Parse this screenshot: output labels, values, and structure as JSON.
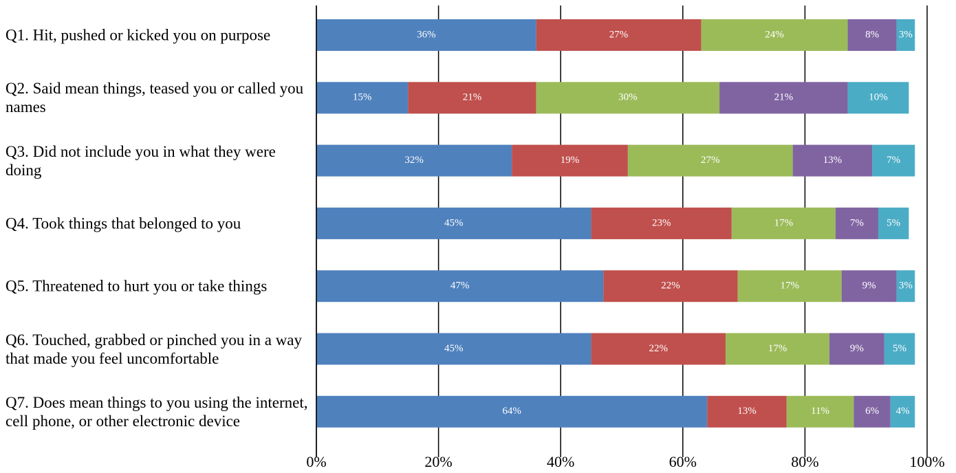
{
  "chart_data": {
    "type": "stacked-bar-horizontal",
    "categories": [
      "Q1. Hit, pushed or kicked you on purpose",
      "Q2. Said mean things, teased you or called you names",
      "Q3. Did not include you in what they were doing",
      "Q4. Took things that belonged to you",
      "Q5. Threatened to hurt you or take things",
      "Q6. Touched, grabbed or pinched you in a way that made you feel uncomfortable",
      "Q7. Does mean things to you using the internet, cell phone, or other electronic device"
    ],
    "series": [
      {
        "color": "#4f81bd",
        "values": [
          36,
          15,
          32,
          45,
          47,
          45,
          64
        ],
        "value_labels": [
          "36%",
          "15%",
          "32%",
          "45%",
          "47%",
          "45%",
          "64%"
        ]
      },
      {
        "color": "#c0504d",
        "values": [
          27,
          21,
          19,
          23,
          22,
          22,
          13
        ],
        "value_labels": [
          "27%",
          "21%",
          "19%",
          "23%",
          "22%",
          "22%",
          "13%"
        ]
      },
      {
        "color": "#9bbb59",
        "values": [
          24,
          30,
          27,
          17,
          17,
          17,
          11
        ],
        "value_labels": [
          "24%",
          "30%",
          "27%",
          "17%",
          "17%",
          "17%",
          "11%"
        ]
      },
      {
        "color": "#8064a2",
        "values": [
          8,
          21,
          13,
          7,
          9,
          9,
          6
        ],
        "value_labels": [
          "8%",
          "21%",
          "13%",
          "7%",
          "9%",
          "9%",
          "6%"
        ]
      },
      {
        "color": "#4bacc6",
        "values": [
          3,
          10,
          7,
          5,
          3,
          5,
          4
        ],
        "value_labels": [
          "3%",
          "10%",
          "7%",
          "5%",
          "3%",
          "5%",
          "4%"
        ]
      }
    ],
    "xlim": [
      0,
      100
    ],
    "xticks": [
      {
        "value": 0,
        "label": "0%"
      },
      {
        "value": 20,
        "label": "20%"
      },
      {
        "value": 40,
        "label": "40%"
      },
      {
        "value": 60,
        "label": "60%"
      },
      {
        "value": 80,
        "label": "80%"
      },
      {
        "value": 100,
        "label": "100%"
      }
    ],
    "grid": true
  }
}
